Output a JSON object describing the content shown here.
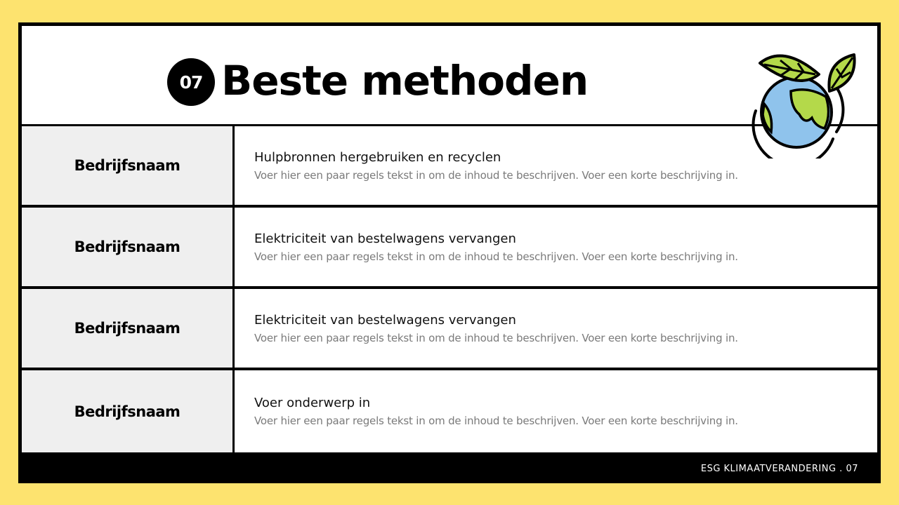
{
  "header": {
    "number": "07",
    "title": "Beste methoden"
  },
  "rows": [
    {
      "company": "Bedrijfsnaam",
      "topic": "Hulpbronnen hergebruiken en recyclen",
      "description": "Voer hier een paar regels tekst in om de inhoud te beschrijven. Voer een korte beschrijving in."
    },
    {
      "company": "Bedrijfsnaam",
      "topic": "Elektriciteit van bestelwagens vervangen",
      "description": "Voer hier een paar regels tekst in om de inhoud te beschrijven. Voer een korte beschrijving in."
    },
    {
      "company": "Bedrijfsnaam",
      "topic": "Elektriciteit van bestelwagens vervangen",
      "description": "Voer hier een paar regels tekst in om de inhoud te beschrijven. Voer een korte beschrijving in."
    },
    {
      "company": "Bedrijfsnaam",
      "topic": "Voer onderwerp in",
      "description": "Voer hier een paar regels tekst in om de inhoud te beschrijven. Voer een korte beschrijving in."
    }
  ],
  "footer": {
    "text": "ESG KLIMAATVERANDERING . 07"
  },
  "icon": "globe-leaves-icon",
  "colors": {
    "background": "#fde36f",
    "frame": "#000000",
    "leaf": "#b4d94a",
    "ocean": "#8fc3ec"
  }
}
